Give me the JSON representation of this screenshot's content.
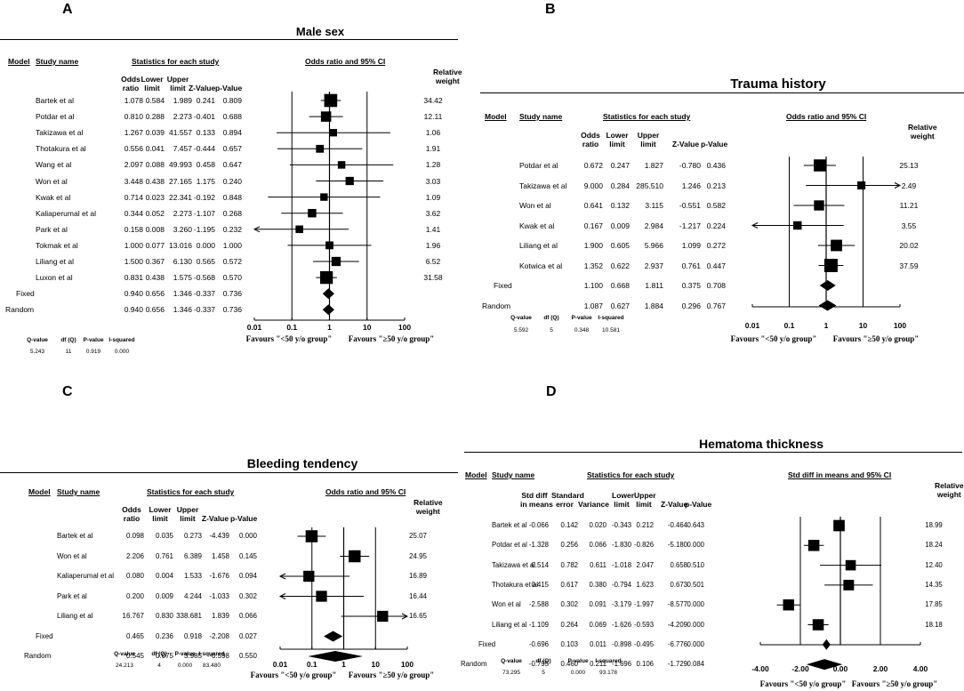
{
  "chart_data": [
    {
      "panel": "A",
      "type": "forest",
      "title": "Male sex",
      "scale": "log",
      "xticks": [
        "0.01",
        "0.1",
        "1",
        "10",
        "100"
      ],
      "headers": {
        "model": "Model",
        "study": "Study name",
        "stats": "Statistics for each study",
        "plot": "Odds ratio and 95% CI",
        "weight": [
          "Relative",
          "weight"
        ],
        "cols": [
          [
            "Odds",
            "ratio"
          ],
          [
            "Lower",
            "limit"
          ],
          [
            "Upper",
            "limit"
          ],
          [
            "Z-Value"
          ],
          [
            "p-Value"
          ]
        ]
      },
      "rows": [
        {
          "study": "Bartek et al",
          "est": "1.078",
          "lo": "0.584",
          "hi": "1.989",
          "z": "0.241",
          "p": "0.809",
          "w": "34.42"
        },
        {
          "study": "Potdar et al",
          "est": "0.810",
          "lo": "0.288",
          "hi": "2.273",
          "z": "-0.401",
          "p": "0.688",
          "w": "12.11"
        },
        {
          "study": "Takizawa et al",
          "est": "1.267",
          "lo": "0.039",
          "hi": "41.557",
          "z": "0.133",
          "p": "0.894",
          "w": "1.06"
        },
        {
          "study": "Thotakura et al",
          "est": "0.556",
          "lo": "0.041",
          "hi": "7.457",
          "z": "-0.444",
          "p": "0.657",
          "w": "1.91"
        },
        {
          "study": "Wang et al",
          "est": "2.097",
          "lo": "0.088",
          "hi": "49.993",
          "z": "0.458",
          "p": "0.647",
          "w": "1.28"
        },
        {
          "study": "Won et al",
          "est": "3.448",
          "lo": "0.438",
          "hi": "27.165",
          "z": "1.175",
          "p": "0.240",
          "w": "3.03"
        },
        {
          "study": "Kwak et al",
          "est": "0.714",
          "lo": "0.023",
          "hi": "22.341",
          "z": "-0.192",
          "p": "0.848",
          "w": "1.09"
        },
        {
          "study": "Kaliaperumal et al",
          "est": "0.344",
          "lo": "0.052",
          "hi": "2.273",
          "z": "-1.107",
          "p": "0.268",
          "w": "3.62"
        },
        {
          "study": "Park et al",
          "est": "0.158",
          "lo": "0.008",
          "hi": "3.260",
          "z": "-1.195",
          "p": "0.232",
          "w": "1.41"
        },
        {
          "study": "Tokmak et al",
          "est": "1.000",
          "lo": "0.077",
          "hi": "13.016",
          "z": "0.000",
          "p": "1.000",
          "w": "1.96"
        },
        {
          "study": "Liliang et al",
          "est": "1.500",
          "lo": "0.367",
          "hi": "6.130",
          "z": "0.565",
          "p": "0.572",
          "w": "6.52"
        },
        {
          "study": "Luxon et al",
          "est": "0.831",
          "lo": "0.438",
          "hi": "1.575",
          "z": "-0.568",
          "p": "0.570",
          "w": "31.58"
        }
      ],
      "summary": [
        {
          "label": "Fixed",
          "est": "0.940",
          "lo": "0.656",
          "hi": "1.346",
          "z": "-0.337",
          "p": "0.736"
        },
        {
          "label": "Random",
          "est": "0.940",
          "lo": "0.656",
          "hi": "1.346",
          "z": "-0.337",
          "p": "0.736"
        }
      ],
      "het_labels": [
        "Q-value",
        "df (Q)",
        "P-value",
        "I-squared"
      ],
      "het_values": [
        "5.243",
        "11",
        "0.919",
        "0.000"
      ],
      "favours": [
        "Favours \"<50 y/o group\"",
        "Favours \"≥50 y/o group\""
      ]
    },
    {
      "panel": "B",
      "type": "forest",
      "title": "Trauma history",
      "scale": "log",
      "xticks": [
        "0.01",
        "0.1",
        "1",
        "10",
        "100"
      ],
      "headers": {
        "model": "Model",
        "study": "Study name",
        "stats": "Statistics for each study",
        "plot": "Odds ratio and 95% CI",
        "weight": [
          "Relative",
          "weight"
        ],
        "cols": [
          [
            "Odds",
            "ratio"
          ],
          [
            "Lower",
            "limit"
          ],
          [
            "Upper",
            "limit"
          ],
          [
            "Z-Value"
          ],
          [
            "p-Value"
          ]
        ]
      },
      "rows": [
        {
          "study": "Potdar et al",
          "est": "0.672",
          "lo": "0.247",
          "hi": "1.827",
          "z": "-0.780",
          "p": "0.436",
          "w": "25.13"
        },
        {
          "study": "Takizawa et al",
          "est": "9.000",
          "lo": "0.284",
          "hi": "285.510",
          "z": "1.246",
          "p": "0.213",
          "w": "2.49"
        },
        {
          "study": "Won et al",
          "est": "0.641",
          "lo": "0.132",
          "hi": "3.115",
          "z": "-0.551",
          "p": "0.582",
          "w": "11.21"
        },
        {
          "study": "Kwak et al",
          "est": "0.167",
          "lo": "0.009",
          "hi": "2.984",
          "z": "-1.217",
          "p": "0.224",
          "w": "3.55"
        },
        {
          "study": "Liliang et al",
          "est": "1.900",
          "lo": "0.605",
          "hi": "5.966",
          "z": "1.099",
          "p": "0.272",
          "w": "20.02"
        },
        {
          "study": "Kotwica  et al",
          "est": "1.352",
          "lo": "0.622",
          "hi": "2.937",
          "z": "0.761",
          "p": "0.447",
          "w": "37.59"
        }
      ],
      "summary": [
        {
          "label": "Fixed",
          "est": "1.100",
          "lo": "0.668",
          "hi": "1.811",
          "z": "0.375",
          "p": "0.708"
        },
        {
          "label": "Random",
          "est": "1.087",
          "lo": "0.627",
          "hi": "1.884",
          "z": "0.296",
          "p": "0.767"
        }
      ],
      "het_labels": [
        "Q-value",
        "df (Q)",
        "P-value",
        "I-squared"
      ],
      "het_values": [
        "5.592",
        "5",
        "0.348",
        "10.581"
      ],
      "favours": [
        "Favours \"<50 y/o group\"",
        "Favours \"≥50 y/o group\""
      ]
    },
    {
      "panel": "C",
      "type": "forest",
      "title": "Bleeding tendency",
      "scale": "log",
      "xticks": [
        "0.01",
        "0.1",
        "1",
        "10",
        "100"
      ],
      "headers": {
        "model": "Model",
        "study": "Study name",
        "stats": "Statistics for each study",
        "plot": "Odds ratio and 95% CI",
        "weight": [
          "Relative",
          "weight"
        ],
        "cols": [
          [
            "Odds",
            "ratio"
          ],
          [
            "Lower",
            "limit"
          ],
          [
            "Upper",
            "limit"
          ],
          [
            "Z-Value"
          ],
          [
            "p-Value"
          ]
        ]
      },
      "rows": [
        {
          "study": "Bartek et al",
          "est": "0.098",
          "lo": "0.035",
          "hi": "0.273",
          "z": "-4.439",
          "p": "0.000",
          "w": "25.07"
        },
        {
          "study": "Won et al",
          "est": "2.206",
          "lo": "0.761",
          "hi": "6.389",
          "z": "1.458",
          "p": "0.145",
          "w": "24.95"
        },
        {
          "study": "Kaliaperumal et al",
          "est": "0.080",
          "lo": "0.004",
          "hi": "1.533",
          "z": "-1.676",
          "p": "0.094",
          "w": "16.89"
        },
        {
          "study": "Park et al",
          "est": "0.200",
          "lo": "0.009",
          "hi": "4.244",
          "z": "-1.033",
          "p": "0.302",
          "w": "16.44"
        },
        {
          "study": "Liliang et al",
          "est": "16.767",
          "lo": "0.830",
          "hi": "338.681",
          "z": "1.839",
          "p": "0.066",
          "w": "16.65"
        }
      ],
      "summary": [
        {
          "label": "Fixed",
          "est": "0.465",
          "lo": "0.236",
          "hi": "0.918",
          "z": "-2.208",
          "p": "0.027"
        },
        {
          "label": "Random",
          "est": "0.545",
          "lo": "0.075",
          "hi": "3.985",
          "z": "-0.598",
          "p": "0.550"
        }
      ],
      "het_labels": [
        "Q-value",
        "df (Q)",
        "P-value",
        "I-squared"
      ],
      "het_values": [
        "24.213",
        "4",
        "0.000",
        "83.480"
      ],
      "favours": [
        "Favours \"<50 y/o group\"",
        "Favours \"≥50 y/o group\""
      ]
    },
    {
      "panel": "D",
      "type": "forest",
      "title": "Hematoma thickness",
      "scale": "linear",
      "xrange": [
        -4,
        4
      ],
      "xticks": [
        "-4.00",
        "-2.00",
        "0.00",
        "2.00",
        "4.00"
      ],
      "headers": {
        "model": "Model",
        "study": "Study name",
        "stats": "Statistics for each study",
        "plot": "Std diff in means and 95% CI",
        "weight": [
          "Relative",
          "weight"
        ],
        "cols": [
          [
            "Std diff",
            "in means"
          ],
          [
            "Standard",
            "error"
          ],
          [
            "Variance"
          ],
          [
            "Lower",
            "limit"
          ],
          [
            "Upper",
            "limit"
          ],
          [
            "Z-Value"
          ],
          [
            "p-Value"
          ]
        ]
      },
      "rows": [
        {
          "study": "Bartek et al",
          "est": "-0.066",
          "se": "0.142",
          "var": "0.020",
          "lo": "-0.343",
          "hi": "0.212",
          "z": "-0.464",
          "p": "0.643",
          "w": "18.99"
        },
        {
          "study": "Potdar et al",
          "est": "-1.328",
          "se": "0.256",
          "var": "0.066",
          "lo": "-1.830",
          "hi": "-0.826",
          "z": "-5.180",
          "p": "0.000",
          "w": "18.24"
        },
        {
          "study": "Takizawa et al",
          "est": "0.514",
          "se": "0.782",
          "var": "0.611",
          "lo": "-1.018",
          "hi": "2.047",
          "z": "0.658",
          "p": "0.510",
          "w": "12.40"
        },
        {
          "study": "Thotakura et al",
          "est": "0.415",
          "se": "0.617",
          "var": "0.380",
          "lo": "-0.794",
          "hi": "1.623",
          "z": "0.673",
          "p": "0.501",
          "w": "14.35"
        },
        {
          "study": "Won et al",
          "est": "-2.588",
          "se": "0.302",
          "var": "0.091",
          "lo": "-3.179",
          "hi": "-1.997",
          "z": "-8.577",
          "p": "0.000",
          "w": "17.85"
        },
        {
          "study": "Liliang et al",
          "est": "-1.109",
          "se": "0.264",
          "var": "0.069",
          "lo": "-1.626",
          "hi": "-0.593",
          "z": "-4.209",
          "p": "0.000",
          "w": "18.18"
        }
      ],
      "summary": [
        {
          "label": "Fixed",
          "est": "-0.696",
          "se": "0.103",
          "var": "0.011",
          "lo": "-0.898",
          "hi": "-0.495",
          "z": "-6.776",
          "p": "0.000"
        },
        {
          "label": "Random",
          "est": "-0.795",
          "se": "0.460",
          "var": "0.211",
          "lo": "-1.696",
          "hi": "0.106",
          "z": "-1.729",
          "p": "0.084"
        }
      ],
      "het_labels": [
        "Q-value",
        "df (Q)",
        "P-value",
        "I-squared"
      ],
      "het_values": [
        "73.295",
        "5",
        "0.000",
        "93.178"
      ],
      "favours": [
        "Favours \"<50 y/o group\"",
        "Favours \"≥50 y/o group\""
      ]
    }
  ]
}
